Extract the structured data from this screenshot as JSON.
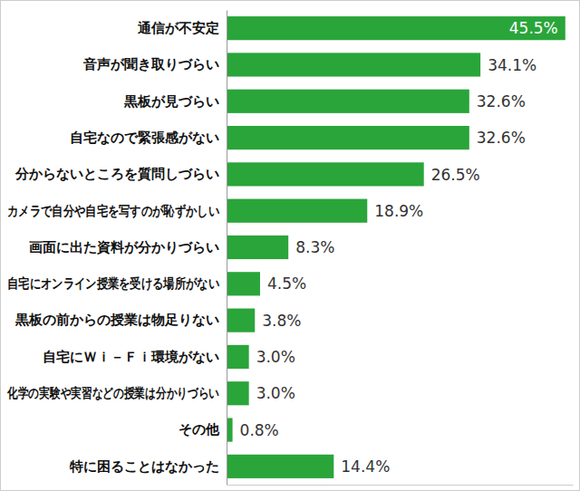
{
  "chart_data": {
    "type": "bar",
    "orientation": "horizontal",
    "categories": [
      "通信が不安定",
      "音声が聞き取りづらい",
      "黒板が見づらい",
      "自宅なので緊張感がない",
      "分からないところを質問しづらい",
      "カメラで自分や自宅を写すのが恥ずかしい",
      "画面に出た資料が分かりづらい",
      "自宅にオンライン授業を受ける場所がない",
      "黒板の前からの授業は物足りない",
      "自宅にＷｉ－Ｆｉ環境がない",
      "化学の実験や実習などの授業は分かりづらい",
      "その他",
      "特に困ることはなかった"
    ],
    "values": [
      45.5,
      34.1,
      32.6,
      32.6,
      26.5,
      18.9,
      8.3,
      4.5,
      3.8,
      3.0,
      3.0,
      0.8,
      14.4
    ],
    "value_labels": [
      "45.5%",
      "34.1%",
      "32.6%",
      "32.6%",
      "26.5%",
      "18.9%",
      "8.3%",
      "4.5%",
      "3.8%",
      "3.0%",
      "3.0%",
      "0.8%",
      "14.4%"
    ],
    "color": "#2aa53a",
    "xlim": [
      0,
      46.5
    ],
    "data_labels": true,
    "tick_labels": "y",
    "grid": false
  }
}
